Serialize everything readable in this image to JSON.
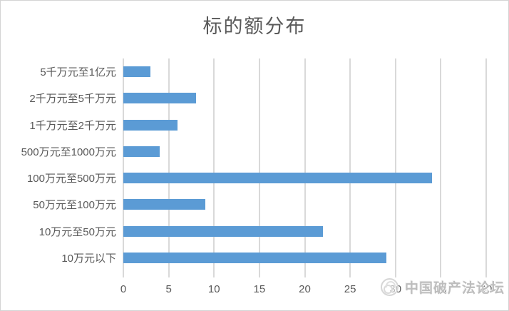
{
  "title": "标的额分布",
  "watermark": {
    "logo": "circular-forum-logo",
    "text": "中国破产法论坛"
  },
  "colors": {
    "bar": "#5b9bd5",
    "gridline": "#d9d9d9",
    "axis_text": "#595959",
    "title_text": "#595959",
    "frame_border": "#d4d4d4",
    "watermark_text": "#bdbdbd"
  },
  "chart_data": {
    "type": "bar",
    "orientation": "horizontal",
    "title": "标的额分布",
    "category_order": "top-to-bottom",
    "categories": [
      "5千万元至1亿元",
      "2千万元至5千万元",
      "1千万元至2千万元",
      "500万元至1000万元",
      "100万元至500万元",
      "50万元至100万元",
      "10万元至50万元",
      "10万元以下"
    ],
    "values": [
      3,
      8,
      6,
      4,
      34,
      9,
      22,
      29
    ],
    "xlabel": "",
    "ylabel": "",
    "xlim": [
      0,
      40
    ],
    "xticks": [
      0,
      5,
      10,
      15,
      20,
      25,
      30,
      35,
      40
    ],
    "grid": true,
    "legend": false
  }
}
